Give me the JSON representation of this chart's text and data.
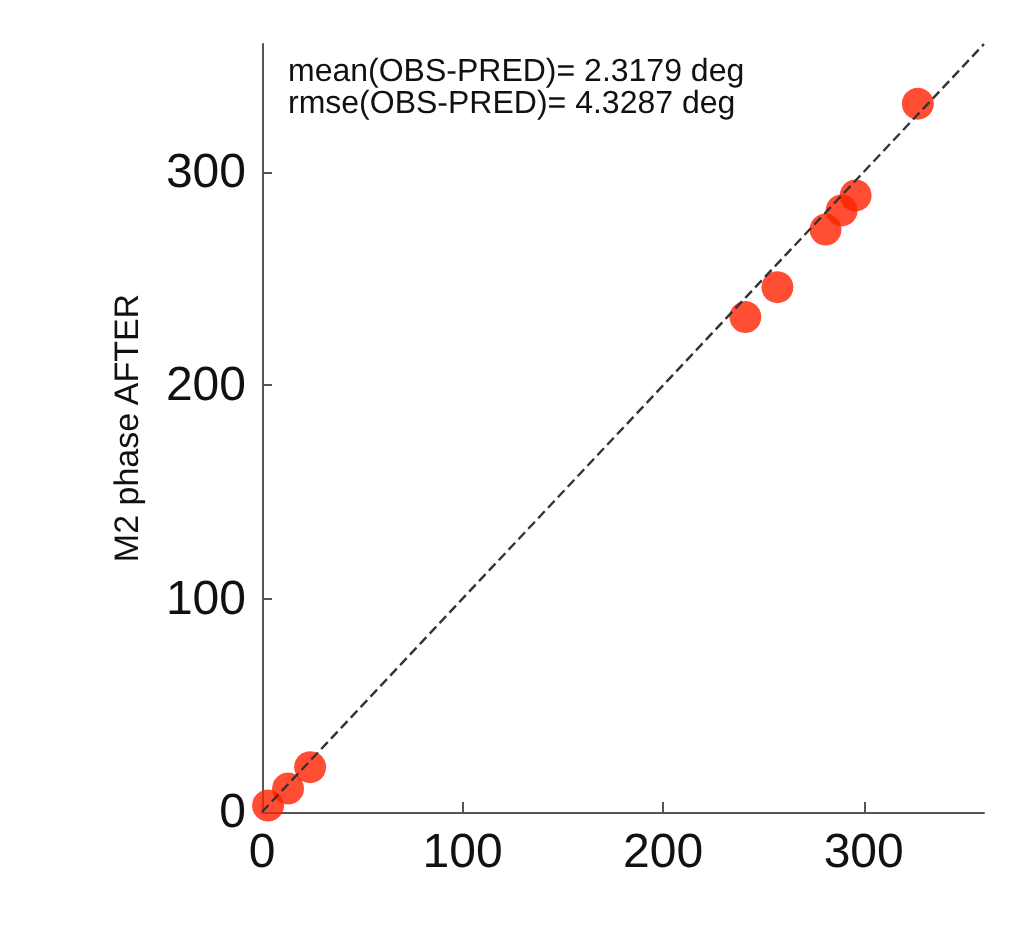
{
  "chart_data": {
    "type": "scatter",
    "ylabel": "M2 phase AFTER",
    "xlim": [
      0,
      360
    ],
    "ylim": [
      0,
      360
    ],
    "xticks": [
      0,
      100,
      200,
      300
    ],
    "yticks": [
      0,
      100,
      200,
      300
    ],
    "grid": false,
    "marker": "circle",
    "annotations": [
      "mean(OBS-PRED)= 2.3179 deg",
      "rmse(OBS-PRED)= 4.3287 deg"
    ],
    "series": [
      {
        "color": "#ff2200",
        "x": [
          3,
          13,
          24,
          241,
          257,
          281,
          289,
          296,
          327
        ],
        "values": [
          3,
          11,
          21,
          232,
          246,
          273,
          282,
          289,
          332
        ]
      },
      {
        "type": "line",
        "color": "#333333",
        "line_style": "dashed",
        "marker": "none",
        "x": [
          0,
          360
        ],
        "values": [
          0,
          360
        ]
      }
    ]
  }
}
